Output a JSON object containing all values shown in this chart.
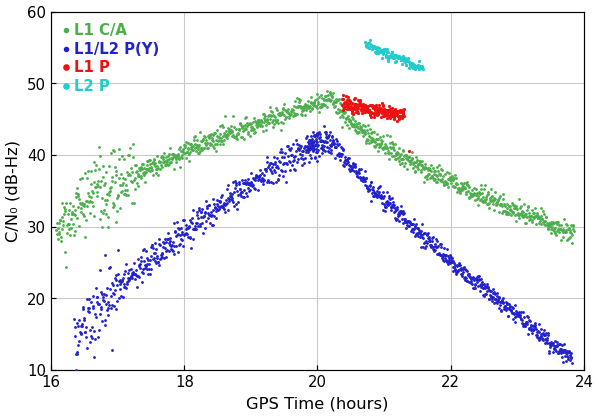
{
  "title": "",
  "xlabel": "GPS Time (hours)",
  "ylabel": "C/N₀ (dB-Hz)",
  "xlim": [
    16,
    24
  ],
  "ylim": [
    10,
    60
  ],
  "xticks": [
    16,
    18,
    20,
    22,
    24
  ],
  "yticks": [
    10,
    20,
    30,
    40,
    50,
    60
  ],
  "grid": true,
  "colors": {
    "L1CA": "#4caf4c",
    "L1L2PY": "#2222cc",
    "L1P": "#ee1111",
    "L2P": "#22cccc"
  },
  "legend": {
    "L1CA": "L1 C/A",
    "L1L2PY": "L1/L2 P(Y)",
    "L1P": "L1 P",
    "L2P": "L2 P"
  },
  "background": "#ffffff",
  "figsize": [
    5.6,
    3.9
  ],
  "dpi": 107
}
